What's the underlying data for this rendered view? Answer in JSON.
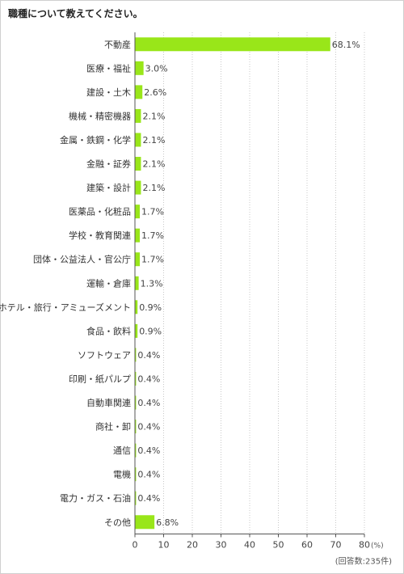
{
  "title": "職種について教えてください。",
  "chart_data": {
    "type": "bar",
    "orientation": "horizontal",
    "categories": [
      "不動産",
      "医療・福祉",
      "建設・土木",
      "機械・精密機器",
      "金属・鉄鋼・化学",
      "金融・証券",
      "建築・設計",
      "医薬品・化粧品",
      "学校・教育関連",
      "団体・公益法人・官公庁",
      "運輸・倉庫",
      "ホテル・旅行・アミューズメント",
      "食品・飲料",
      "ソフトウェア",
      "印刷・紙パルプ",
      "自動車関連",
      "商社・卸",
      "通信",
      "電機",
      "電力・ガス・石油",
      "その他"
    ],
    "values": [
      68.1,
      3.0,
      2.6,
      2.1,
      2.1,
      2.1,
      2.1,
      1.7,
      1.7,
      1.7,
      1.3,
      0.9,
      0.9,
      0.4,
      0.4,
      0.4,
      0.4,
      0.4,
      0.4,
      0.4,
      6.8
    ],
    "value_labels": [
      "68.1%",
      "3.0%",
      "2.6%",
      "2.1%",
      "2.1%",
      "2.1%",
      "2.1%",
      "1.7%",
      "1.7%",
      "1.7%",
      "1.3%",
      "0.9%",
      "0.9%",
      "0.4%",
      "0.4%",
      "0.4%",
      "0.4%",
      "0.4%",
      "0.4%",
      "0.4%",
      "6.8%"
    ],
    "xlim": [
      0,
      80
    ],
    "xticks": [
      "0",
      "10",
      "20",
      "30",
      "40",
      "50",
      "60",
      "70",
      "80"
    ],
    "x_unit": "(%)",
    "note": "(回答数:235件)",
    "grid": "vertical dotted",
    "bar_color": "#99e619"
  }
}
